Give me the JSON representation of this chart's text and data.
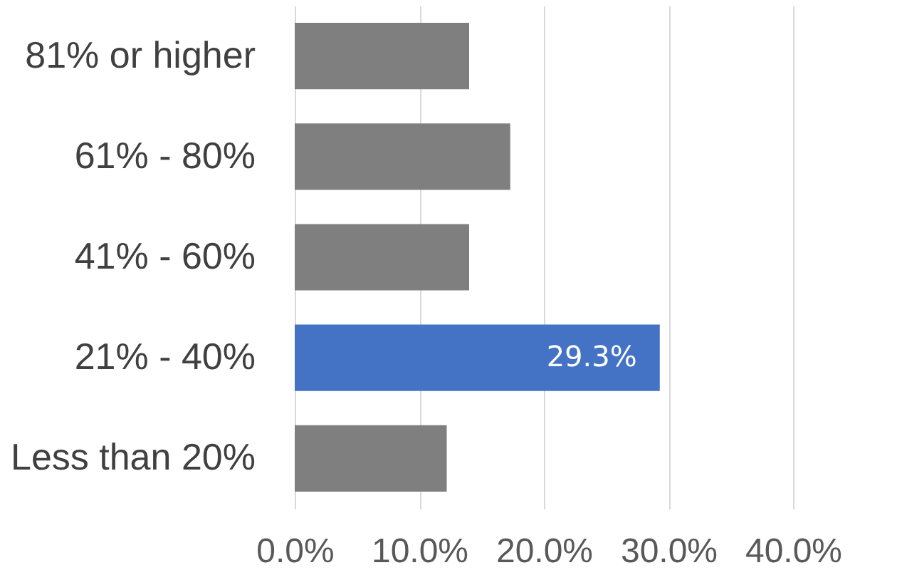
{
  "chart_data": {
    "type": "bar",
    "orientation": "horizontal",
    "categories": [
      "81% or higher",
      "61% - 80%",
      "41% - 60%",
      "21% - 40%",
      "Less than 20%"
    ],
    "values": [
      14.0,
      17.3,
      14.0,
      29.3,
      12.2
    ],
    "colors": [
      "#7f7f7f",
      "#7f7f7f",
      "#7f7f7f",
      "#4472c4",
      "#7f7f7f"
    ],
    "value_labels": [
      null,
      null,
      null,
      "29.3%",
      null
    ],
    "xlim": [
      0,
      40
    ],
    "xticks": [
      {
        "value": 0,
        "label": "0.0%"
      },
      {
        "value": 10,
        "label": "10.0%"
      },
      {
        "value": 20,
        "label": "20.0%"
      },
      {
        "value": 30,
        "label": "30.0%"
      },
      {
        "value": 40,
        "label": "40.0%"
      }
    ],
    "grid": "x",
    "legend": false
  }
}
